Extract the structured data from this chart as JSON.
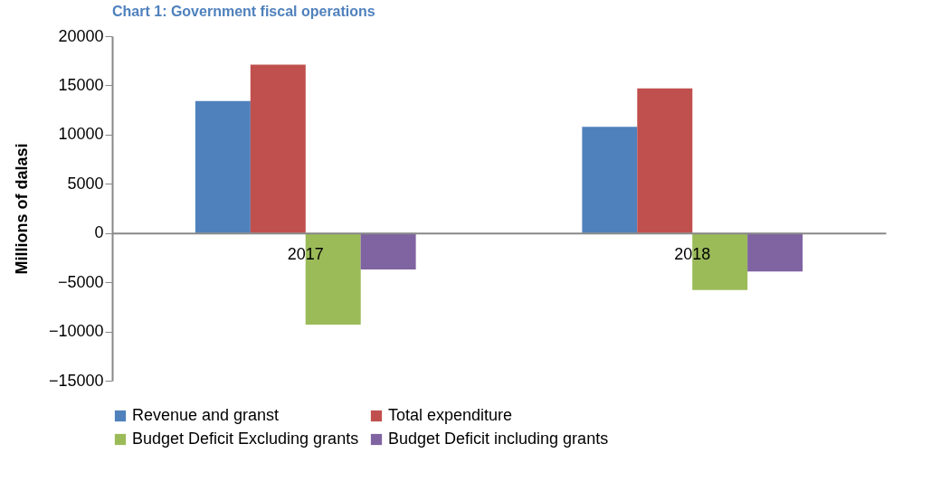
{
  "chart_data": {
    "type": "bar",
    "title": "Chart 1: Government fiscal operations",
    "ylabel": "Millions of dalasi",
    "categories": [
      "2017",
      "2018"
    ],
    "series": [
      {
        "name": "Revenue and granst",
        "color": "#4f81bd",
        "values": [
          13400,
          10800
        ]
      },
      {
        "name": "Total expenditure",
        "color": "#c0504d",
        "values": [
          17100,
          14700
        ]
      },
      {
        "name": "Budget Deficit Excluding grants",
        "color": "#9bbb59",
        "values": [
          -9300,
          -5800
        ]
      },
      {
        "name": "Budget Deficit including grants",
        "color": "#8064a2",
        "values": [
          -3700,
          -3900
        ]
      }
    ],
    "ylim": [
      -15000,
      20000
    ],
    "yticks": [
      -15000,
      -10000,
      -5000,
      0,
      5000,
      10000,
      15000,
      20000
    ],
    "grid": false,
    "legend": "bottom"
  }
}
